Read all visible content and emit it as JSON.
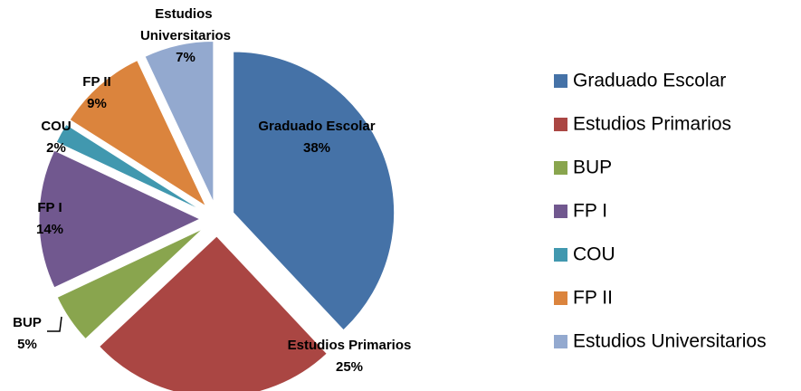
{
  "chart_data": {
    "type": "pie",
    "categories": [
      "Graduado Escolar",
      "Estudios Primarios",
      "BUP",
      "FP I",
      "COU",
      "FP II",
      "Estudios Universitarios"
    ],
    "values": [
      38,
      25,
      5,
      14,
      2,
      9,
      7
    ],
    "value_labels": [
      "38%",
      "25%",
      "5%",
      "14%",
      "2%",
      "9%",
      "7%"
    ],
    "colors": [
      "#4572a7",
      "#aa4643",
      "#89a54e",
      "#71588f",
      "#4198af",
      "#db843d",
      "#93a9cf"
    ],
    "legend": "right"
  }
}
